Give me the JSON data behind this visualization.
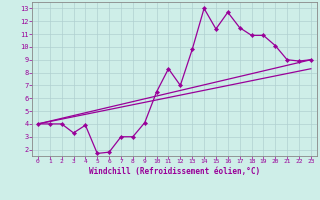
{
  "xlabel": "Windchill (Refroidissement éolien,°C)",
  "bg_color": "#ceeee8",
  "line_color": "#990099",
  "grid_color": "#b0d0d0",
  "spine_color": "#888888",
  "xlim": [
    -0.5,
    23.5
  ],
  "ylim": [
    1.5,
    13.5
  ],
  "xticks": [
    0,
    1,
    2,
    3,
    4,
    5,
    6,
    7,
    8,
    9,
    10,
    11,
    12,
    13,
    14,
    15,
    16,
    17,
    18,
    19,
    20,
    21,
    22,
    23
  ],
  "yticks": [
    2,
    3,
    4,
    5,
    6,
    7,
    8,
    9,
    10,
    11,
    12,
    13
  ],
  "series1_x": [
    0,
    1,
    2,
    3,
    4,
    5,
    6,
    7,
    8,
    9,
    10,
    11,
    12,
    13,
    14,
    15,
    16,
    17,
    18,
    19,
    20,
    21,
    22,
    23
  ],
  "series1_y": [
    4.0,
    4.0,
    4.0,
    3.3,
    3.9,
    1.7,
    1.8,
    3.0,
    3.0,
    4.1,
    6.5,
    8.3,
    7.0,
    9.8,
    13.0,
    11.4,
    12.7,
    11.5,
    10.9,
    10.9,
    10.1,
    9.0,
    8.9,
    9.0
  ],
  "series2_x": [
    0,
    23
  ],
  "series2_y": [
    4.0,
    8.3
  ],
  "series3_x": [
    0,
    23
  ],
  "series3_y": [
    4.0,
    9.0
  ]
}
